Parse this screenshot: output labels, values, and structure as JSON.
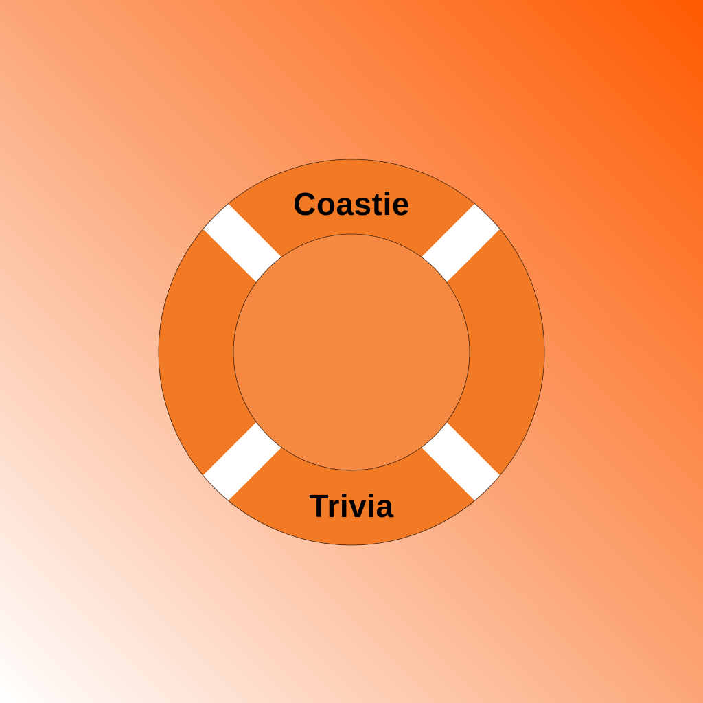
{
  "logo": {
    "top_word": "Coastie",
    "bottom_word": "Trivia"
  },
  "colors": {
    "background_start": "#FFFFFF",
    "background_mid": "#FCA677",
    "background_end": "#FF5A00",
    "ring": "#F27A25",
    "stripe": "#FFFFFF",
    "text": "#000000"
  }
}
